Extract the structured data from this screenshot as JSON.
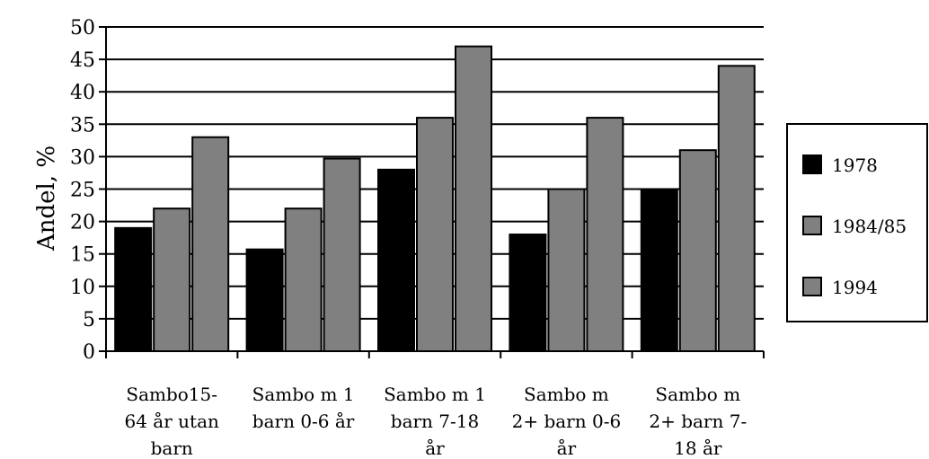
{
  "chart_data": {
    "type": "bar",
    "title": "",
    "xlabel": "",
    "ylabel": "Andel, %",
    "ylim": [
      0,
      50
    ],
    "yticks": [
      0,
      5,
      10,
      15,
      20,
      25,
      30,
      35,
      40,
      45,
      50
    ],
    "grid": "horizontal",
    "legend": "right",
    "categories": [
      [
        "Sambo15-",
        "64 år utan",
        "barn"
      ],
      [
        "Sambo m 1",
        "barn 0-6 år"
      ],
      [
        "Sambo m 1",
        "barn 7-18",
        "år"
      ],
      [
        "Sambo m",
        "2+ barn 0-6",
        "år"
      ],
      [
        "Sambo m",
        "2+ barn 7-",
        "18 år"
      ]
    ],
    "series": [
      {
        "name": "1978",
        "values": [
          19,
          15.7,
          28,
          18,
          25
        ],
        "color": "#000000"
      },
      {
        "name": "1984/85",
        "values": [
          22,
          22,
          36,
          25,
          31
        ],
        "color": "#808080"
      },
      {
        "name": "1994",
        "values": [
          33,
          29.7,
          47,
          36,
          44
        ],
        "color": "#808080"
      }
    ]
  }
}
